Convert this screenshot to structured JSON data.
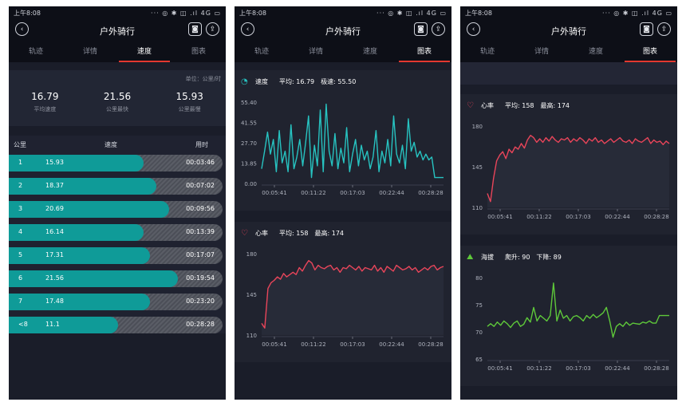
{
  "status": {
    "time": "上午8:08",
    "icons": "··· ◎ ✱ ◫ .ıl 4G ▭"
  },
  "header": {
    "title": "户外骑行",
    "back_glyph": "‹",
    "camera_glyph": "◙",
    "share_glyph": "⇪"
  },
  "tabs": [
    "轨迹",
    "详情",
    "速度",
    "图表"
  ],
  "screen1": {
    "active_tab": "速度",
    "unit": "单位：公里/时",
    "stats": [
      {
        "value": "16.79",
        "label": "平均速度"
      },
      {
        "value": "21.56",
        "label": "公里最快"
      },
      {
        "value": "15.93",
        "label": "公里最慢"
      }
    ],
    "columns": [
      "公里",
      "速度",
      "用时"
    ],
    "rows": [
      {
        "km": "1",
        "speed": "15.93",
        "time": "00:03:46",
        "pct": 0.63
      },
      {
        "km": "2",
        "speed": "18.37",
        "time": "00:07:02",
        "pct": 0.69
      },
      {
        "km": "3",
        "speed": "20.69",
        "time": "00:09:56",
        "pct": 0.75
      },
      {
        "km": "4",
        "speed": "16.14",
        "time": "00:13:39",
        "pct": 0.63
      },
      {
        "km": "5",
        "speed": "17.31",
        "time": "00:17:07",
        "pct": 0.66
      },
      {
        "km": "6",
        "speed": "21.56",
        "time": "00:19:54",
        "pct": 0.79
      },
      {
        "km": "7",
        "speed": "17.48",
        "time": "00:23:20",
        "pct": 0.66
      },
      {
        "km": "<8",
        "speed": "11.1",
        "time": "00:28:28",
        "pct": 0.51
      }
    ]
  },
  "speed_card": {
    "label": "速度",
    "avg": "平均: 16.79",
    "max": "极速: 55.50",
    "icon": "speedometer-icon"
  },
  "hr_card": {
    "label": "心率",
    "avg": "平均: 158",
    "max": "最高: 174",
    "icon": "heart-icon"
  },
  "alt_card": {
    "label": "海拔",
    "up": "爬升: 90",
    "down": "下降: 89",
    "icon": "mountain-icon"
  },
  "colors": {
    "teal": "#27c3c1",
    "red": "#e9455a",
    "green": "#5ec83a",
    "tab_underline": "#e3382f"
  },
  "chart_data": [
    {
      "type": "line",
      "title": "速度",
      "yticks": [
        "55.40",
        "41.55",
        "27.70",
        "13.85",
        "0.00"
      ],
      "ylim": [
        0,
        55.4
      ],
      "xticks": [
        "00:05:41",
        "00:11:22",
        "00:17:03",
        "00:22:44",
        "00:28:28"
      ],
      "series": [
        {
          "name": "速度",
          "values": [
            10,
            22,
            35,
            20,
            30,
            8,
            36,
            14,
            22,
            8,
            40,
            10,
            18,
            30,
            12,
            28,
            46,
            4,
            26,
            12,
            50,
            8,
            54,
            22,
            12,
            34,
            10,
            24,
            14,
            38,
            8,
            20,
            30,
            12,
            26,
            16,
            22,
            10,
            18,
            36,
            8,
            22,
            14,
            30,
            12,
            46,
            20,
            14,
            26,
            10,
            44,
            22,
            28,
            18,
            22,
            16,
            20,
            16,
            18,
            4,
            4,
            4,
            4
          ]
        }
      ]
    },
    {
      "type": "line",
      "title": "心率",
      "yticks": [
        "180",
        "145",
        "110"
      ],
      "ylim": [
        110,
        180
      ],
      "xticks": [
        "00:05:41",
        "00:11:22",
        "00:17:03",
        "00:22:44",
        "00:28:28"
      ],
      "series": [
        {
          "name": "心率",
          "values": [
            120,
            116,
            150,
            155,
            157,
            160,
            158,
            163,
            160,
            162,
            164,
            162,
            168,
            165,
            170,
            174,
            172,
            166,
            170,
            168,
            167,
            169,
            170,
            166,
            168,
            164,
            168,
            167,
            170,
            168,
            166,
            169,
            165,
            168,
            167,
            166,
            170,
            165,
            168,
            164,
            169,
            167,
            165,
            170,
            168,
            166,
            167,
            169,
            166,
            168,
            164,
            166,
            168,
            166,
            169,
            170,
            166,
            168,
            169
          ]
        }
      ]
    },
    {
      "type": "line",
      "title": "心率",
      "yticks": [
        "180",
        "145",
        "110"
      ],
      "ylim": [
        110,
        180
      ],
      "xticks": [
        "00:05:41",
        "00:11:22",
        "00:17:03",
        "00:22:44",
        "00:28:28"
      ],
      "series": [
        {
          "name": "心率",
          "values": [
            122,
            115,
            135,
            150,
            155,
            158,
            152,
            160,
            157,
            162,
            160,
            165,
            161,
            168,
            172,
            170,
            166,
            169,
            166,
            170,
            167,
            171,
            168,
            166,
            169,
            168,
            170,
            166,
            169,
            167,
            170,
            168,
            165,
            169,
            167,
            170,
            166,
            168,
            165,
            167,
            169,
            166,
            168,
            170,
            167,
            166,
            168,
            165,
            169,
            167,
            166,
            168,
            170,
            165,
            168,
            166,
            167,
            164,
            167,
            165
          ]
        }
      ]
    },
    {
      "type": "line",
      "title": "海拔",
      "yticks": [
        "80",
        "75",
        "70",
        "65"
      ],
      "ylim": [
        65,
        80
      ],
      "xticks": [
        "00:05:41",
        "00:11:22",
        "00:17:03",
        "00:22:44",
        "00:28:28"
      ],
      "series": [
        {
          "name": "海拔",
          "values": [
            71,
            71.5,
            71,
            71.8,
            71.2,
            72,
            71.5,
            70.8,
            71.6,
            72,
            71,
            71.4,
            72.6,
            71.8,
            74.5,
            72,
            73,
            72.5,
            72,
            73,
            79,
            72,
            74,
            72.5,
            73,
            72,
            72.8,
            73,
            72.6,
            72,
            73,
            72.5,
            73.2,
            72.6,
            73,
            73.5,
            74.5,
            72,
            69,
            71,
            71.5,
            71,
            71.8,
            71.2,
            71.6,
            71.5,
            71.4,
            71.8,
            71.6,
            72,
            71.6,
            71.6,
            73,
            73,
            73,
            73
          ]
        }
      ]
    }
  ]
}
